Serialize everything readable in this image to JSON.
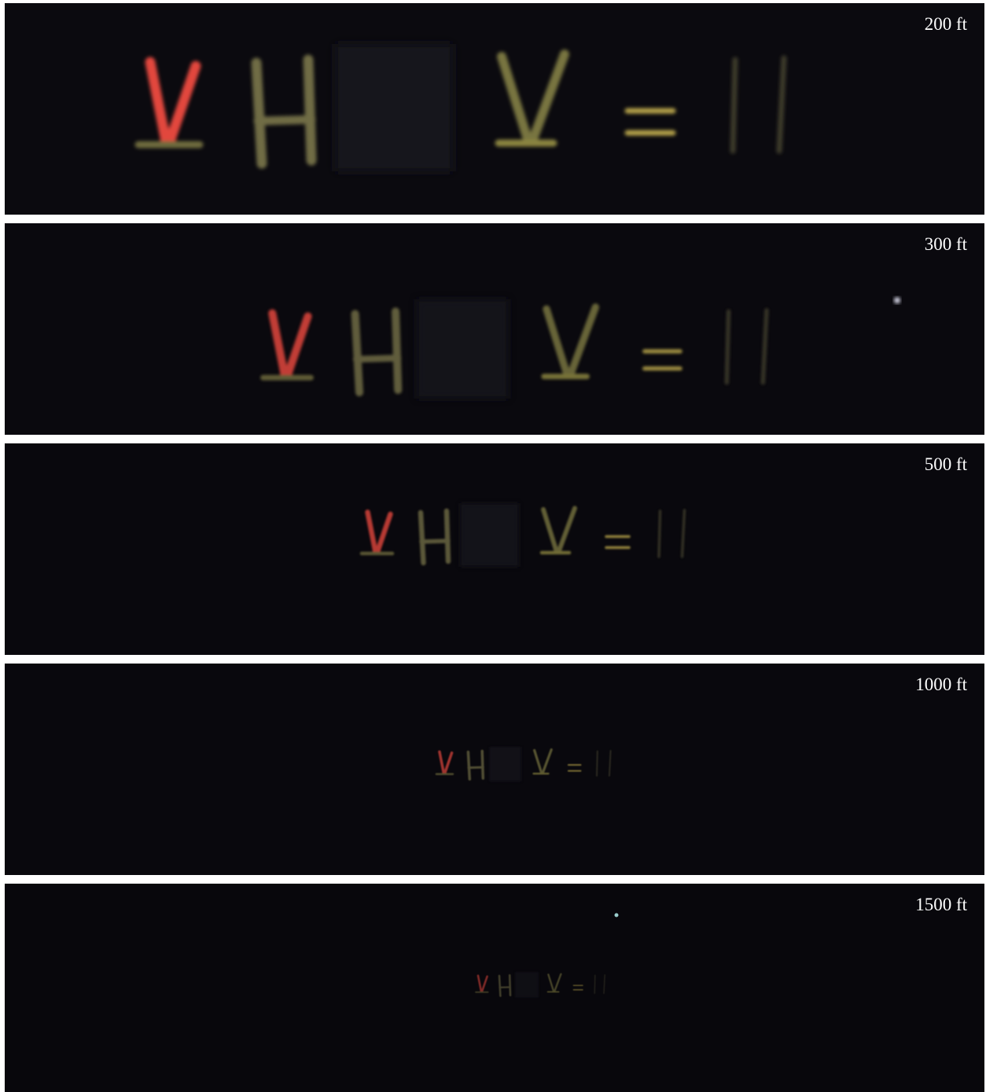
{
  "panels": [
    {
      "label": "200 ft"
    },
    {
      "label": "300 ft"
    },
    {
      "label": "500 ft"
    },
    {
      "label": "1000 ft"
    },
    {
      "label": "1500 ft"
    }
  ]
}
